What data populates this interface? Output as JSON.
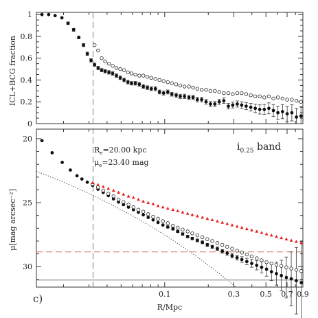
{
  "panel_label": "c)",
  "chart_data": [
    {
      "type": "scatter",
      "ylabel": "ICL+BCG fraction",
      "xscale": "log",
      "xlim": [
        0.013,
        0.9
      ],
      "ylim": [
        0,
        1.02
      ],
      "yticks": [
        "0",
        "0.2",
        "0.4",
        "0.6",
        "0.8",
        "1"
      ],
      "series": [
        {
          "style": "filled",
          "x": [
            0.0142,
            0.0158,
            0.0175,
            0.0195,
            0.0215,
            0.0235,
            0.0255,
            0.0275,
            0.0292,
            0.031,
            0.0328,
            0.0347,
            0.0367,
            0.0388,
            0.0412,
            0.0437,
            0.0464,
            0.0493,
            0.0524,
            0.0557,
            0.059,
            0.0627,
            0.0668,
            0.0712,
            0.0759,
            0.0808,
            0.0862,
            0.092,
            0.0982,
            0.105,
            0.112,
            0.12,
            0.128,
            0.137,
            0.147,
            0.157,
            0.168,
            0.18,
            0.193,
            0.207,
            0.222,
            0.238,
            0.256,
            0.275,
            0.295,
            0.317,
            0.34,
            0.365,
            0.393,
            0.422,
            0.453,
            0.487,
            0.524,
            0.563,
            0.605,
            0.651,
            0.701,
            0.755,
            0.812,
            0.873
          ],
          "y": [
            1.0,
            1.0,
            0.99,
            0.97,
            0.92,
            0.86,
            0.79,
            0.72,
            0.64,
            0.58,
            0.54,
            0.51,
            0.49,
            0.48,
            0.47,
            0.46,
            0.44,
            0.42,
            0.4,
            0.38,
            0.37,
            0.37,
            0.36,
            0.34,
            0.33,
            0.32,
            0.32,
            0.29,
            0.28,
            0.29,
            0.27,
            0.26,
            0.25,
            0.25,
            0.24,
            0.24,
            0.22,
            0.22,
            0.2,
            0.18,
            0.18,
            0.2,
            0.21,
            0.16,
            0.17,
            0.18,
            0.17,
            0.16,
            0.15,
            0.14,
            0.13,
            0.13,
            0.14,
            0.12,
            0.1,
            0.11,
            0.09,
            0.1,
            0.06,
            0.07
          ],
          "err": [
            0.005,
            0.005,
            0.006,
            0.008,
            0.012,
            0.013,
            0.013,
            0.014,
            0.015,
            0.015,
            0.015,
            0.015,
            0.015,
            0.015,
            0.016,
            0.016,
            0.016,
            0.016,
            0.016,
            0.016,
            0.016,
            0.017,
            0.017,
            0.017,
            0.017,
            0.017,
            0.018,
            0.018,
            0.018,
            0.018,
            0.018,
            0.019,
            0.019,
            0.02,
            0.02,
            0.02,
            0.021,
            0.021,
            0.022,
            0.022,
            0.023,
            0.024,
            0.025,
            0.026,
            0.027,
            0.028,
            0.03,
            0.032,
            0.035,
            0.038,
            0.042,
            0.046,
            0.05,
            0.055,
            0.06,
            0.065,
            0.07,
            0.075,
            0.08,
            0.085
          ]
        },
        {
          "style": "open",
          "x": [
            0.0328,
            0.0347,
            0.0367,
            0.0388,
            0.0412,
            0.0437,
            0.0464,
            0.0493,
            0.0524,
            0.0557,
            0.059,
            0.0627,
            0.0668,
            0.0712,
            0.0759,
            0.0808,
            0.0862,
            0.092,
            0.0982,
            0.105,
            0.112,
            0.12,
            0.128,
            0.137,
            0.147,
            0.157,
            0.168,
            0.18,
            0.193,
            0.207,
            0.222,
            0.238,
            0.256,
            0.275,
            0.295,
            0.317,
            0.34,
            0.365,
            0.393,
            0.422,
            0.453,
            0.487,
            0.524,
            0.563,
            0.605,
            0.651,
            0.701,
            0.755,
            0.812,
            0.873
          ],
          "y": [
            0.72,
            0.67,
            0.6,
            0.57,
            0.55,
            0.53,
            0.51,
            0.5,
            0.49,
            0.47,
            0.46,
            0.45,
            0.44,
            0.44,
            0.43,
            0.42,
            0.41,
            0.4,
            0.39,
            0.38,
            0.37,
            0.36,
            0.35,
            0.34,
            0.34,
            0.33,
            0.32,
            0.31,
            0.31,
            0.3,
            0.3,
            0.29,
            0.28,
            0.28,
            0.27,
            0.28,
            0.28,
            0.27,
            0.26,
            0.25,
            0.25,
            0.24,
            0.25,
            0.23,
            0.24,
            0.23,
            0.22,
            0.22,
            0.21,
            0.2
          ]
        }
      ]
    },
    {
      "type": "scatter",
      "xlabel": "R/Mpc",
      "ylabel": "μ[mag arcsec⁻²]",
      "xscale": "log",
      "xlim": [
        0.013,
        0.9
      ],
      "ylim": [
        31.6,
        19.25
      ],
      "xticks": [
        "0.1",
        "0.3",
        "0.5",
        "0.7",
        "0.9"
      ],
      "yticks": [
        "20",
        "25",
        "30"
      ],
      "band_label": "i",
      "band_sub": "0.25",
      "band_suffix": " band",
      "annot_re_pre": "R",
      "annot_re_sub": "e",
      "annot_re_val": "=20.00 kpc",
      "annot_mu_pre": "μ",
      "annot_mu_sub": "e",
      "annot_mu_val": "=23.40 mag",
      "vline_x": 0.032,
      "hline_solid_y": 31.05,
      "hline_dashed_y": 28.85,
      "sersic": {
        "Re_mpc": 0.02,
        "mu_e": 23.4,
        "n": 4
      },
      "series": [
        {
          "style": "filled",
          "x": [
            0.0142,
            0.0167,
            0.0196,
            0.0223,
            0.0248,
            0.0268,
            0.0292,
            0.0318,
            0.0346,
            0.0376,
            0.0408,
            0.0443,
            0.048,
            0.0519,
            0.0562,
            0.0608,
            0.0658,
            0.0711,
            0.0769,
            0.0832,
            0.0899,
            0.0972,
            0.105,
            0.114,
            0.123,
            0.133,
            0.144,
            0.155,
            0.168,
            0.182,
            0.197,
            0.213,
            0.231,
            0.25,
            0.27,
            0.292,
            0.316,
            0.341,
            0.369,
            0.399,
            0.432,
            0.467,
            0.505,
            0.546,
            0.591,
            0.639,
            0.692,
            0.748,
            0.81,
            0.877
          ],
          "y": [
            20.15,
            21.1,
            21.85,
            22.45,
            22.9,
            23.15,
            23.4,
            23.65,
            23.95,
            24.2,
            24.45,
            24.7,
            24.95,
            25.15,
            25.35,
            25.55,
            25.75,
            25.95,
            26.15,
            26.35,
            26.55,
            26.75,
            26.9,
            27.05,
            27.25,
            27.45,
            27.65,
            27.8,
            27.95,
            28.1,
            28.3,
            28.45,
            28.6,
            28.8,
            28.95,
            29.15,
            29.3,
            29.45,
            29.6,
            29.75,
            29.9,
            30.05,
            30.2,
            30.4,
            30.55,
            30.7,
            30.85,
            30.95,
            31.1,
            31.25
          ],
          "err": [
            0.05,
            0.05,
            0.05,
            0.05,
            0.05,
            0.05,
            0.05,
            0.05,
            0.05,
            0.06,
            0.06,
            0.06,
            0.06,
            0.06,
            0.07,
            0.07,
            0.07,
            0.07,
            0.08,
            0.08,
            0.08,
            0.08,
            0.09,
            0.09,
            0.09,
            0.1,
            0.1,
            0.1,
            0.11,
            0.11,
            0.12,
            0.12,
            0.13,
            0.14,
            0.15,
            0.17,
            0.19,
            0.22,
            0.25,
            0.3,
            0.36,
            0.44,
            0.55,
            0.7,
            0.9,
            1.2,
            1.6,
            2.1,
            2.6,
            3.2
          ]
        },
        {
          "style": "open",
          "x": [
            0.0318,
            0.0346,
            0.0376,
            0.0408,
            0.0443,
            0.048,
            0.0519,
            0.0562,
            0.0608,
            0.0658,
            0.0711,
            0.0769,
            0.0832,
            0.0899,
            0.0972,
            0.105,
            0.114,
            0.123,
            0.133,
            0.144,
            0.155,
            0.168,
            0.182,
            0.197,
            0.213,
            0.231,
            0.25,
            0.27,
            0.292,
            0.316,
            0.341,
            0.369,
            0.399,
            0.432,
            0.467,
            0.505,
            0.546,
            0.591,
            0.639,
            0.692,
            0.748,
            0.81,
            0.877
          ],
          "y": [
            23.55,
            23.8,
            24.05,
            24.3,
            24.5,
            24.75,
            24.95,
            25.15,
            25.35,
            25.55,
            25.7,
            25.9,
            26.1,
            26.25,
            26.45,
            26.6,
            26.8,
            26.95,
            27.1,
            27.25,
            27.4,
            27.55,
            27.7,
            27.85,
            28.0,
            28.15,
            28.3,
            28.45,
            28.6,
            28.75,
            28.9,
            29.05,
            29.2,
            29.35,
            29.5,
            29.65,
            29.75,
            29.85,
            29.95,
            30.05,
            30.15,
            30.25,
            30.35
          ]
        },
        {
          "style": "red-triangle",
          "color": "#e8211d",
          "x": [
            0.0318,
            0.0346,
            0.0376,
            0.0408,
            0.0443,
            0.048,
            0.0519,
            0.0562,
            0.0608,
            0.0658,
            0.0711,
            0.0769,
            0.0832,
            0.0899,
            0.0972,
            0.105,
            0.114,
            0.123,
            0.133,
            0.144,
            0.155,
            0.168,
            0.182,
            0.197,
            0.213,
            0.231,
            0.25,
            0.27,
            0.292,
            0.316,
            0.341,
            0.369,
            0.399,
            0.432,
            0.467,
            0.505,
            0.546,
            0.591,
            0.639,
            0.692,
            0.748,
            0.81,
            0.877
          ],
          "y": [
            23.45,
            23.6,
            23.75,
            23.9,
            24.05,
            24.2,
            24.35,
            24.5,
            24.6,
            24.75,
            24.9,
            25.0,
            25.1,
            25.25,
            25.35,
            25.45,
            25.55,
            25.65,
            25.75,
            25.85,
            25.95,
            26.05,
            26.15,
            26.25,
            26.35,
            26.45,
            26.55,
            26.65,
            26.75,
            26.85,
            26.95,
            27.05,
            27.15,
            27.25,
            27.35,
            27.45,
            27.55,
            27.65,
            27.75,
            27.85,
            27.95,
            28.05,
            28.15
          ]
        }
      ]
    }
  ]
}
